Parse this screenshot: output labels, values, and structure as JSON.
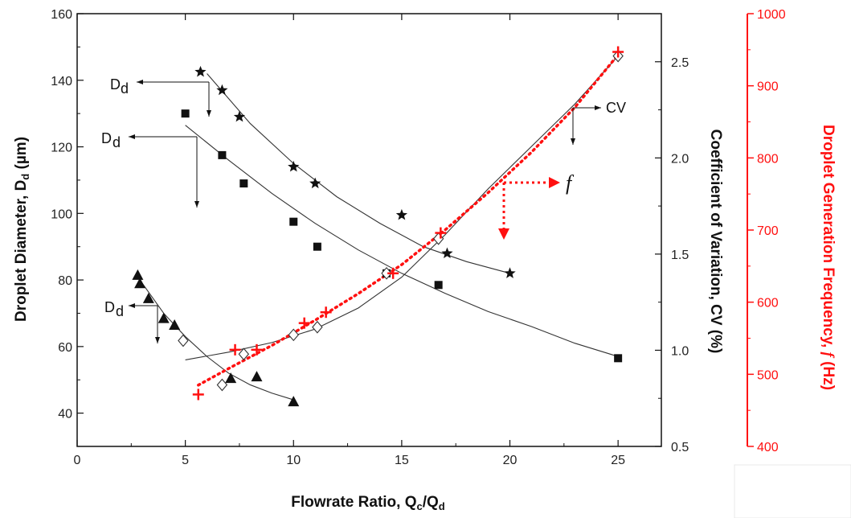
{
  "chart_data": {
    "type": "scatter",
    "xlabel": "Flowrate Ratio, Q",
    "xlabel_sub1": "c",
    "xlabel_mid": "/Q",
    "xlabel_sub2": "d",
    "ylabel_left": "Droplet Diameter, D",
    "ylabel_left_sub": "d",
    "ylabel_left_unit": " (µm)",
    "ylabel_mid": "Coefficient of Variation, CV (%)",
    "ylabel_right": "Droplet Generation Frequency, ",
    "ylabel_right_f": "f",
    "ylabel_right_unit": " (Hz)",
    "xlim": [
      0,
      27
    ],
    "ylim_left": [
      30,
      160
    ],
    "ylim_mid": [
      0.5,
      2.75
    ],
    "ylim_right": [
      400,
      1000
    ],
    "x_ticks": [
      "0",
      "5",
      "10",
      "15",
      "20",
      "25"
    ],
    "y_left_ticks": [
      "40",
      "60",
      "80",
      "100",
      "120",
      "140",
      "160"
    ],
    "y_mid_ticks": [
      "0.5",
      "1.0",
      "1.5",
      "2.0",
      "2.5"
    ],
    "y_right_ticks": [
      "400",
      "500",
      "600",
      "700",
      "800",
      "900",
      "1000"
    ],
    "colors": {
      "black": "#111111",
      "red": "#ff1010"
    },
    "series": [
      {
        "marker": "star",
        "axis": "left",
        "x": [
          5.7,
          6.7,
          7.5,
          10.0,
          11.0,
          15.0,
          17.1,
          20.0
        ],
        "y": [
          142.5,
          137,
          129,
          114,
          109,
          99.5,
          88,
          82
        ],
        "fit": [
          [
            6.0,
            142
          ],
          [
            8.0,
            127
          ],
          [
            10.0,
            115
          ],
          [
            12.0,
            105
          ],
          [
            14.0,
            97
          ],
          [
            16.0,
            90
          ],
          [
            18.0,
            85.5
          ],
          [
            20.0,
            82
          ]
        ]
      },
      {
        "marker": "square",
        "axis": "left",
        "x": [
          5.0,
          6.7,
          7.7,
          10.0,
          11.1,
          14.3,
          16.7,
          25.0
        ],
        "y": [
          130,
          117.5,
          109,
          97.5,
          90,
          82,
          78.5,
          56.5
        ],
        "fit": [
          [
            5.0,
            126.5
          ],
          [
            7.0,
            116
          ],
          [
            9.0,
            106
          ],
          [
            11.0,
            97
          ],
          [
            13.0,
            89
          ],
          [
            15.0,
            82
          ],
          [
            17.0,
            76
          ],
          [
            19.0,
            70.5
          ],
          [
            21.0,
            66
          ],
          [
            23.0,
            61
          ],
          [
            25.0,
            57
          ]
        ]
      },
      {
        "marker": "triangle",
        "axis": "left",
        "x": [
          2.8,
          2.9,
          3.3,
          4.0,
          4.5,
          7.1,
          8.3,
          10.0
        ],
        "y": [
          81.5,
          79,
          74.5,
          68.5,
          66.5,
          50.5,
          51,
          43.5
        ],
        "fit": [
          [
            2.9,
            80
          ],
          [
            4.0,
            70
          ],
          [
            5.0,
            63
          ],
          [
            6.0,
            57
          ],
          [
            7.0,
            52
          ],
          [
            8.0,
            48.5
          ],
          [
            9.0,
            46
          ],
          [
            10.0,
            44
          ]
        ]
      },
      {
        "marker": "diamond",
        "axis": "mid",
        "x": [
          4.9,
          6.7,
          7.7,
          10.0,
          11.1,
          14.3,
          16.7,
          25.0
        ],
        "y": [
          1.05,
          0.82,
          0.98,
          1.08,
          1.12,
          1.4,
          1.58,
          2.53
        ],
        "fit": [
          [
            5.0,
            0.95
          ],
          [
            7.0,
            0.99
          ],
          [
            9.0,
            1.04
          ],
          [
            11.0,
            1.11
          ],
          [
            13.0,
            1.22
          ],
          [
            15.0,
            1.38
          ],
          [
            17.0,
            1.6
          ],
          [
            19.0,
            1.84
          ],
          [
            21.0,
            2.06
          ],
          [
            23.0,
            2.28
          ],
          [
            25.0,
            2.53
          ]
        ]
      },
      {
        "marker": "plus",
        "axis": "right",
        "x": [
          5.6,
          7.3,
          8.3,
          10.5,
          11.5,
          14.6,
          16.8,
          25.0
        ],
        "y": [
          472,
          534,
          534,
          571,
          586,
          640,
          696,
          947
        ],
        "fit": [
          [
            5.6,
            485
          ],
          [
            7.0,
            508
          ],
          [
            9.0,
            540
          ],
          [
            11.0,
            575
          ],
          [
            13.0,
            612
          ],
          [
            15.0,
            652
          ],
          [
            17.0,
            700
          ],
          [
            19.0,
            752
          ],
          [
            21.0,
            808
          ],
          [
            23.0,
            870
          ],
          [
            25.0,
            943
          ]
        ]
      }
    ],
    "annotations": [
      {
        "label": "D",
        "sub": "d"
      },
      {
        "label": "D",
        "sub": "d"
      },
      {
        "label": "D",
        "sub": "d"
      },
      {
        "label": "CV"
      },
      {
        "label": "f"
      }
    ]
  }
}
